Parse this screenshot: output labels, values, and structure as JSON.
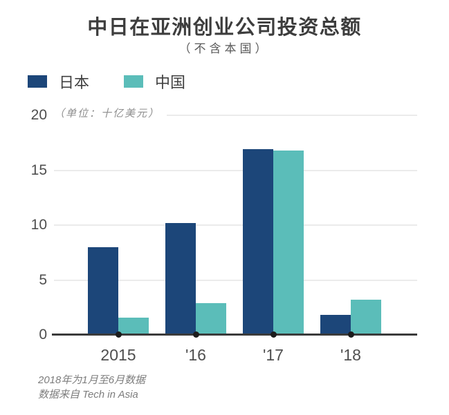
{
  "header": {
    "title": "中日在亚洲创业公司投资总额",
    "subtitle": "（不含本国）"
  },
  "legend": [
    {
      "key": "japan",
      "label": "日本",
      "color": "#1c4679"
    },
    {
      "key": "china",
      "label": "中国",
      "color": "#5bbdb9"
    }
  ],
  "chart_data": {
    "type": "bar",
    "categories": [
      "2015",
      "'16",
      "'17",
      "'18"
    ],
    "series": [
      {
        "key": "japan",
        "name": "日本",
        "color": "#1c4679",
        "values": [
          8.0,
          10.2,
          16.9,
          1.8
        ]
      },
      {
        "key": "china",
        "name": "中国",
        "color": "#5bbdb9",
        "values": [
          1.6,
          2.9,
          16.8,
          3.2
        ]
      }
    ],
    "title": "中日在亚洲创业公司投资总额",
    "subtitle": "（不含本国）",
    "unit_label": "（单位：十亿美元）",
    "xlabel": "",
    "ylabel": "",
    "y_ticks": [
      0,
      5,
      10,
      15,
      20
    ],
    "ylim": [
      0,
      20
    ],
    "grid": true,
    "legend_position": "top-left"
  },
  "colors": {
    "japan_bar": "#1c4679",
    "china_bar": "#5bbdb9",
    "axis": "#3a3a3a",
    "gridline": "#ebebeb",
    "title_text": "#3d3d3d",
    "tick_text": "#4f4f4f",
    "muted_text": "#8f8f8f"
  },
  "footnote": {
    "line1": "2018年为1月至6月数据",
    "line2": "数据来自 Tech in Asia"
  }
}
